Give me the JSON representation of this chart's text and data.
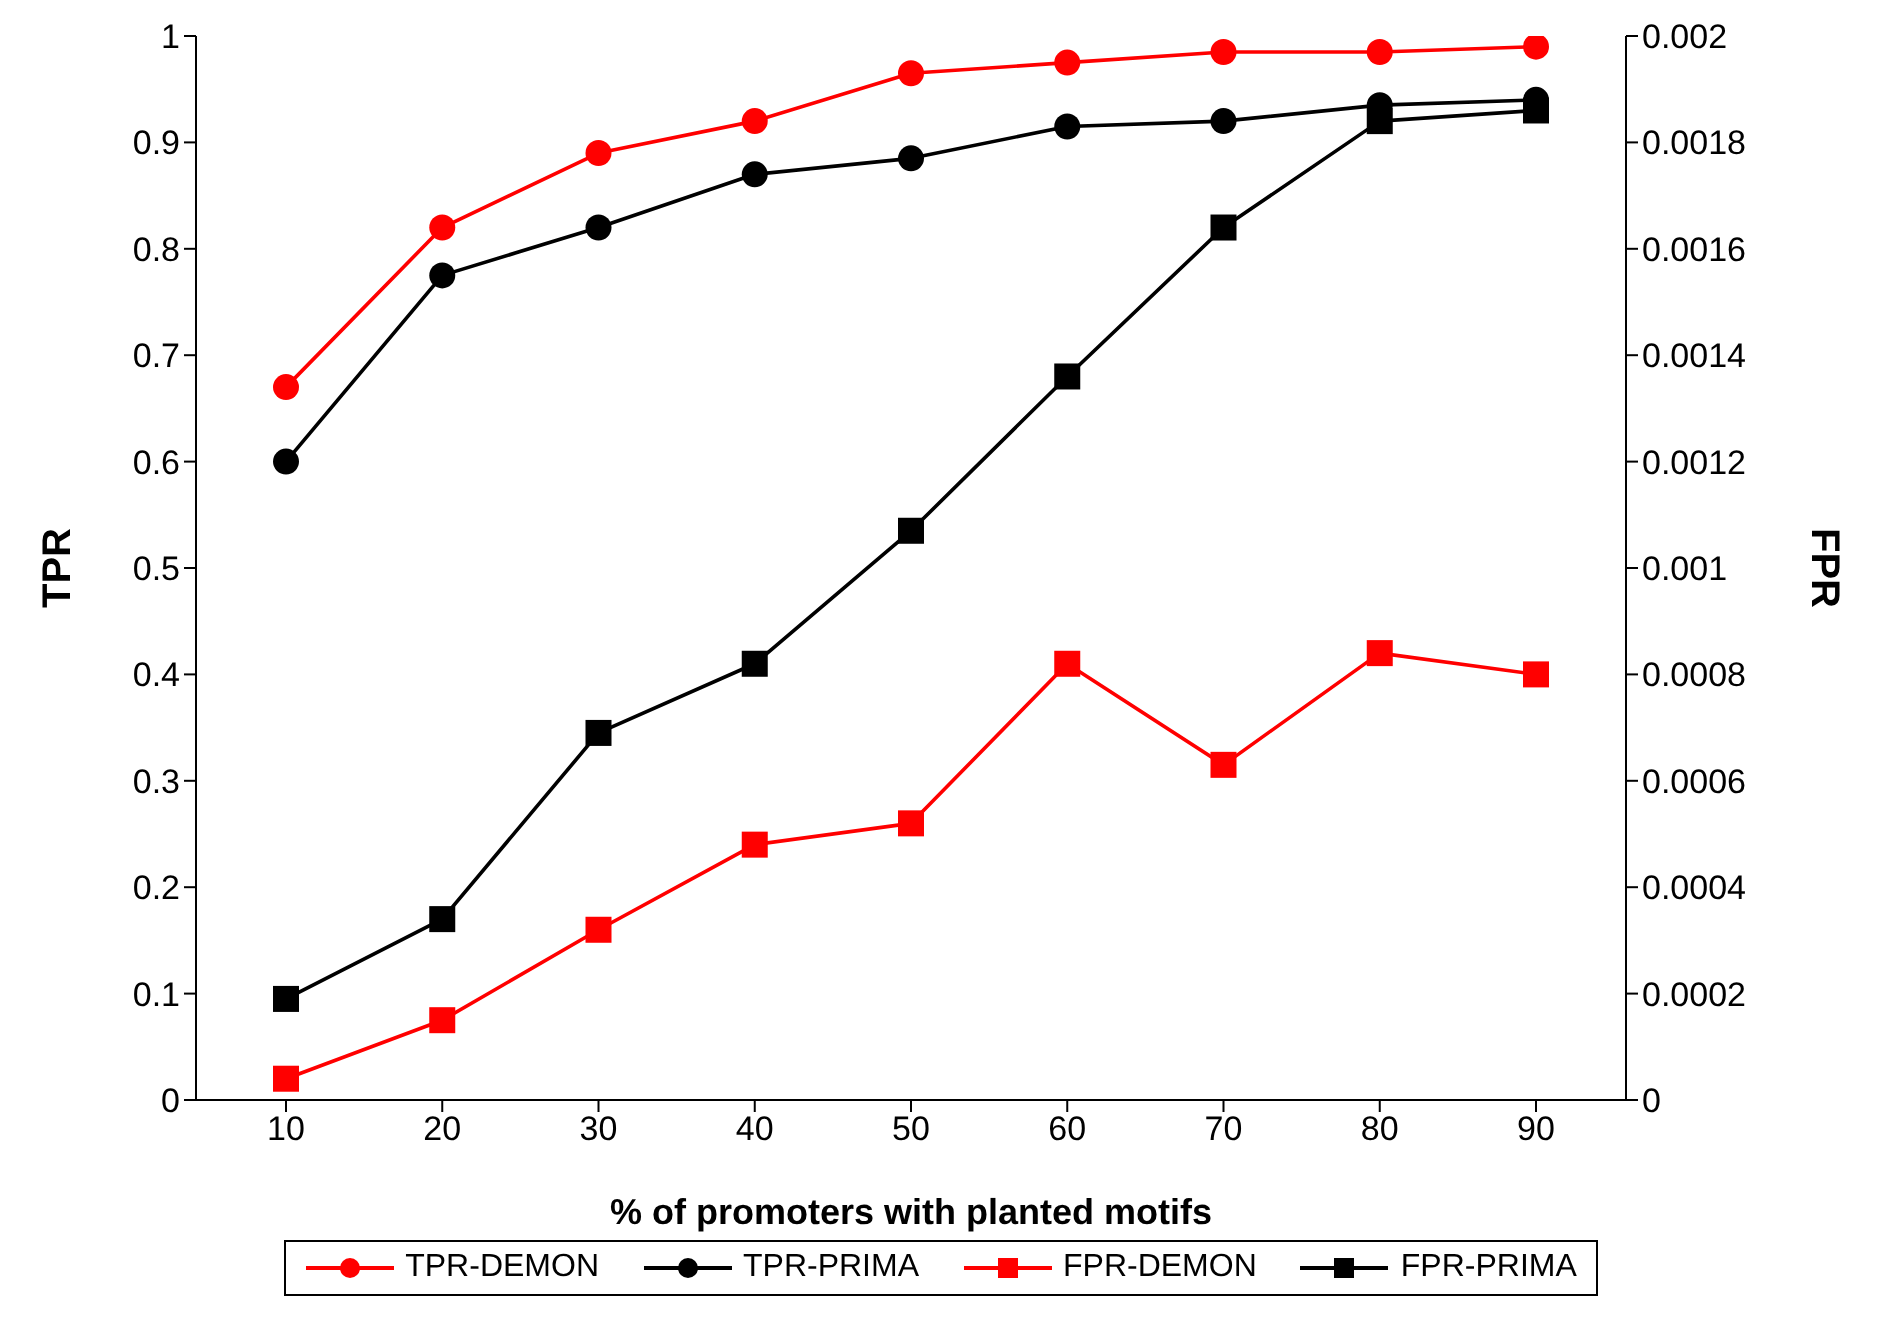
{
  "chart_data": {
    "type": "line",
    "xlabel": "% of promoters with planted motifs",
    "ylabel": "TPR",
    "y2label": "FPR",
    "categories": [
      "10",
      "20",
      "30",
      "40",
      "50",
      "60",
      "70",
      "80",
      "90"
    ],
    "ylim": [
      0,
      1
    ],
    "yticks": [
      0,
      0.1,
      0.2,
      0.3,
      0.4,
      0.5,
      0.6,
      0.7,
      0.8,
      0.9,
      1
    ],
    "y2lim": [
      0,
      0.002
    ],
    "y2ticks": [
      0,
      0.0002,
      0.0004,
      0.0006,
      0.0008,
      0.001,
      0.0012,
      0.0014,
      0.0016,
      0.0018,
      0.002
    ],
    "legend": "bottom",
    "line_style": "solid",
    "series": [
      {
        "name": "TPR-DEMON",
        "color": "#ff0000",
        "marker": "circle",
        "values": [
          0.67,
          0.82,
          0.89,
          0.92,
          0.965,
          0.975,
          0.985,
          0.985,
          0.99
        ]
      },
      {
        "name": "TPR-PRIMA",
        "color": "#000000",
        "marker": "circle",
        "values": [
          0.6,
          0.775,
          0.82,
          0.87,
          0.885,
          0.915,
          0.92,
          0.935,
          0.94
        ]
      },
      {
        "name": "FPR-DEMON",
        "color": "#ff0000",
        "marker": "square",
        "axis": "y2",
        "values": [
          4e-05,
          0.00015,
          0.00032,
          0.00048,
          0.00052,
          0.00082,
          0.00063,
          0.00084,
          0.0008
        ]
      },
      {
        "name": "FPR-PRIMA",
        "color": "#000000",
        "marker": "square",
        "axis": "y2",
        "values": [
          0.00019,
          0.00034,
          0.00069,
          0.00082,
          0.00107,
          0.00136,
          0.00164,
          0.00184,
          0.00186
        ]
      }
    ]
  }
}
